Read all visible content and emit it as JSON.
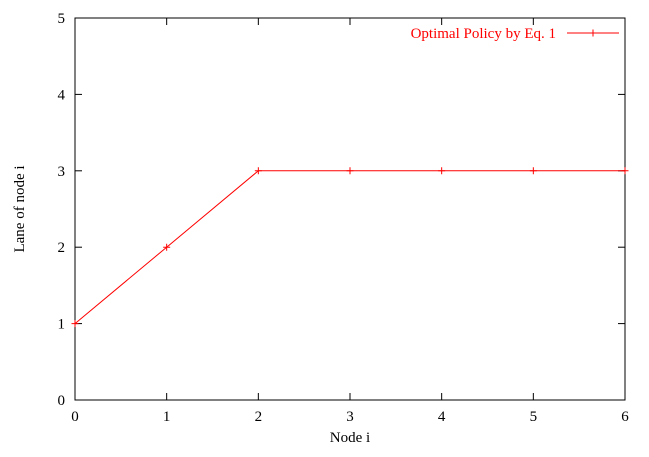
{
  "chart_data": {
    "type": "line",
    "title": "",
    "xlabel": "Node i",
    "ylabel": "Lane of node i",
    "xlim": [
      0,
      6
    ],
    "ylim": [
      0,
      5
    ],
    "x_ticks": [
      0,
      1,
      2,
      3,
      4,
      5,
      6
    ],
    "y_ticks": [
      0,
      1,
      2,
      3,
      4,
      5
    ],
    "grid": false,
    "legend_position": "top-right",
    "series": [
      {
        "name": "Optimal Policy by Eq. 1",
        "color": "#ff0000",
        "marker": "plus",
        "x": [
          0,
          1,
          2,
          3,
          4,
          5,
          6
        ],
        "y": [
          1,
          2,
          3,
          3,
          3,
          3,
          3
        ]
      }
    ]
  }
}
